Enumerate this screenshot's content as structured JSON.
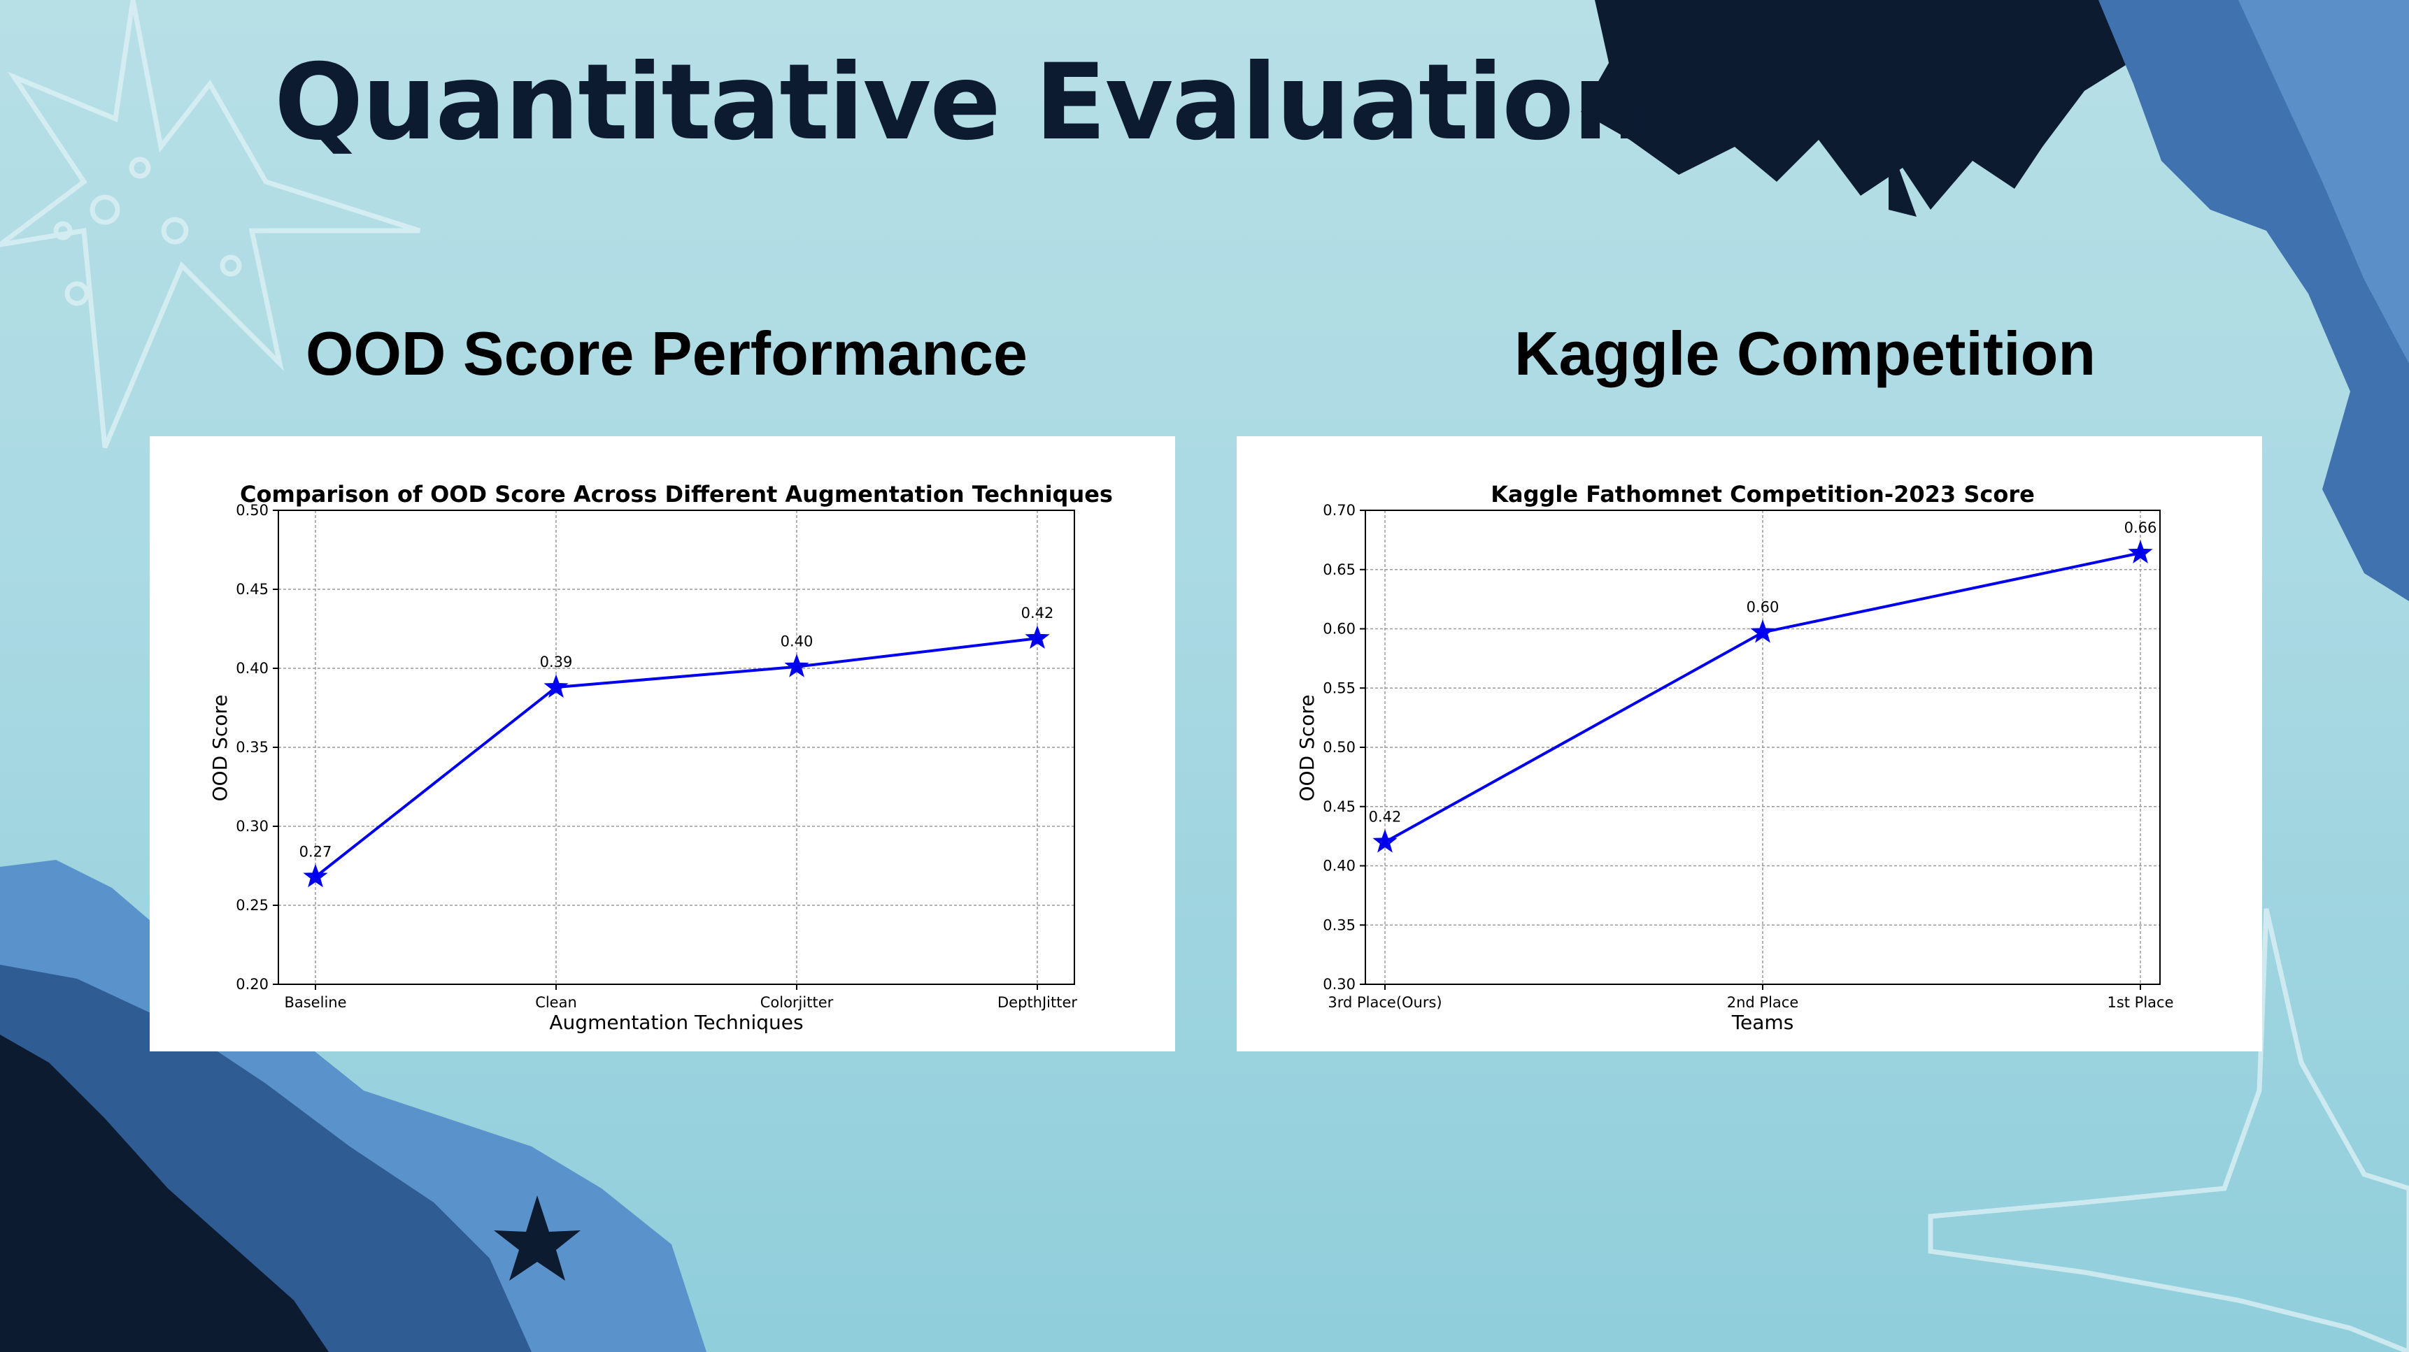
{
  "slide": {
    "title": "Quantitative Evaluation",
    "left_heading": "OOD Score Performance",
    "right_heading": "Kaggle Competition"
  },
  "colors": {
    "background": "#a9d9e3",
    "title": "#0d1b31",
    "line": "#0000ee",
    "coral_dark": "#0d1b31",
    "coral_blue": "#3f72ae"
  },
  "chart_data": [
    {
      "type": "line",
      "title": "Comparison of OOD Score Across Different Augmentation Techniques",
      "xlabel": "Augmentation Techniques",
      "ylabel": "OOD Score",
      "categories": [
        "Baseline",
        "Clean",
        "Colorjitter",
        "DepthJitter"
      ],
      "values": [
        0.268,
        0.388,
        0.401,
        0.419
      ],
      "data_labels": [
        "0.27",
        "0.39",
        "0.40",
        "0.42"
      ],
      "ylim": [
        0.2,
        0.5
      ],
      "yticks": [
        "0.20",
        "0.25",
        "0.30",
        "0.35",
        "0.40",
        "0.45",
        "0.50"
      ],
      "marker": "star",
      "grid": true
    },
    {
      "type": "line",
      "title": "Kaggle Fathomnet Competition-2023 Score",
      "xlabel": "Teams",
      "ylabel": "OOD Score",
      "categories": [
        "3rd Place(Ours)",
        "2nd Place",
        "1st Place"
      ],
      "values": [
        0.42,
        0.597,
        0.664
      ],
      "data_labels": [
        "0.42",
        "0.60",
        "0.66"
      ],
      "ylim": [
        0.3,
        0.7
      ],
      "yticks": [
        "0.30",
        "0.35",
        "0.40",
        "0.45",
        "0.50",
        "0.55",
        "0.60",
        "0.65",
        "0.70"
      ],
      "marker": "star",
      "grid": true
    }
  ]
}
